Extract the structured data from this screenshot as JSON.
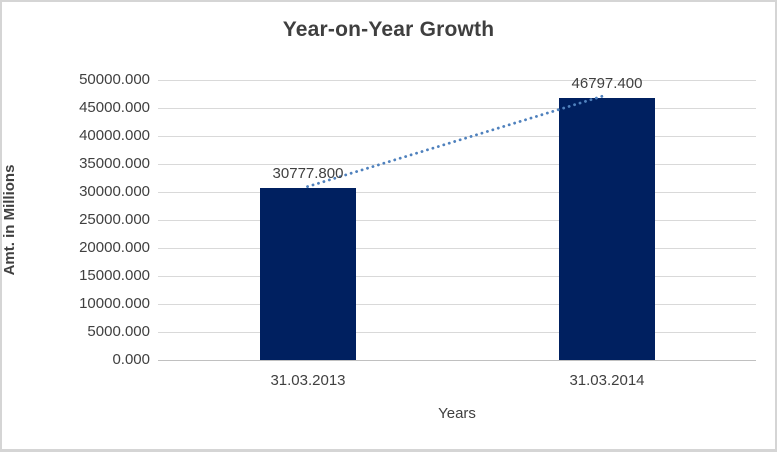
{
  "chart_data": {
    "type": "bar",
    "title": "Year-on-Year Growth",
    "xlabel": "Years",
    "ylabel": "Amt. in Millions",
    "categories": [
      "31.03.2013",
      "31.03.2014"
    ],
    "values": [
      30777.8,
      46797.4
    ],
    "data_labels": [
      "30777.800",
      "46797.400"
    ],
    "y_ticks_top_to_bottom": [
      "50000.000",
      "45000.000",
      "40000.000",
      "35000.000",
      "30000.000",
      "25000.000",
      "20000.000",
      "15000.000",
      "10000.000",
      "5000.000",
      "0.000"
    ],
    "ylim": [
      0,
      50000
    ],
    "grid": true,
    "legend": "none",
    "trendline": {
      "style": "dotted",
      "from_value": 30777.8,
      "to_value": 46797.4
    },
    "colors": {
      "bar": "#002060",
      "trendline": "#4f81bd",
      "gridline": "#d9d9d9",
      "axis_line": "#c0c0c0",
      "text": "#404040",
      "title_text": "#3f3f3f",
      "frame_border": "#d5d5d5",
      "background": "#ffffff"
    }
  }
}
